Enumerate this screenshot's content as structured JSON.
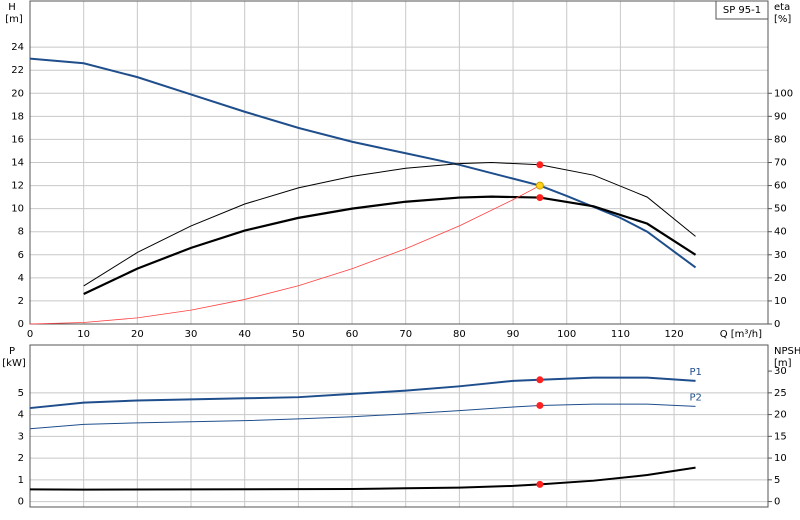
{
  "chart_data": [
    {
      "type": "line",
      "ylabel": "H",
      "yunit": "[m]",
      "y2label": "eta",
      "y2unit": "[%]",
      "xlabel": "Q [m³/h]",
      "title": "SP 95-1",
      "xlim": [
        0,
        137.5
      ],
      "xticks": [
        0,
        10,
        20,
        30,
        40,
        50,
        60,
        70,
        80,
        90,
        100,
        110,
        120
      ],
      "ylim": [
        0,
        28
      ],
      "yticks": [
        0,
        2,
        4,
        6,
        8,
        10,
        12,
        14,
        16,
        18,
        20,
        22,
        24
      ],
      "y2lim": [
        0,
        140
      ],
      "y2ticks": [
        0,
        10,
        20,
        30,
        40,
        50,
        60,
        70,
        80,
        90,
        100
      ],
      "grid": true,
      "x_tick_labels": true,
      "series": [
        {
          "color": "#1f4e8c",
          "width": 2,
          "axis": "y",
          "x": [
            0,
            10,
            20,
            30,
            40,
            50,
            60,
            70,
            80,
            90,
            95,
            100,
            110,
            115,
            124
          ],
          "values": [
            23,
            22.6,
            21.4,
            19.9,
            18.4,
            17,
            15.8,
            14.8,
            13.8,
            12.6,
            12,
            11.1,
            9.2,
            8,
            4.9
          ]
        },
        {
          "color": "#000000",
          "width": 1,
          "axis": "y2",
          "x": [
            10,
            20,
            30,
            40,
            50,
            60,
            70,
            80,
            86,
            95,
            105,
            115,
            124
          ],
          "values": [
            16.5,
            31,
            42.5,
            52,
            59,
            64,
            67.5,
            69.5,
            70,
            69,
            64.5,
            55,
            38
          ]
        },
        {
          "color": "#000000",
          "width": 2.2,
          "axis": "y2",
          "x": [
            10,
            20,
            30,
            40,
            50,
            60,
            70,
            80,
            86,
            95,
            105,
            115,
            124
          ],
          "values": [
            13,
            24,
            33,
            40.5,
            46,
            50,
            53,
            54.8,
            55.2,
            54.8,
            51,
            43.5,
            30
          ]
        },
        {
          "color": "#ff4040",
          "width": 0.8,
          "axis": "y",
          "x": [
            0,
            10,
            20,
            30,
            40,
            50,
            60,
            70,
            80,
            90,
            95
          ],
          "values": [
            0,
            0.13,
            0.53,
            1.2,
            2.13,
            3.32,
            4.79,
            6.52,
            8.51,
            10.77,
            12
          ]
        }
      ],
      "points": [
        {
          "x": 95,
          "value": 12,
          "color": "#ffd21f",
          "axis": "y"
        },
        {
          "x": 95,
          "value": 69,
          "color": "#ff2020",
          "axis": "y2"
        },
        {
          "x": 95,
          "value": 54.8,
          "color": "#ff2020",
          "axis": "y2"
        }
      ]
    },
    {
      "type": "line",
      "ylabel": "P",
      "yunit": "[kW]",
      "y2label": "NPSH",
      "y2unit": "[m]",
      "xlim": [
        0,
        137.5
      ],
      "xticks": [
        0,
        10,
        20,
        30,
        40,
        50,
        60,
        70,
        80,
        90,
        100,
        110,
        120
      ],
      "ylim": [
        -0.25,
        7.2
      ],
      "yticks": [
        0,
        1,
        2,
        3,
        4,
        5
      ],
      "y2lim": [
        -1.25,
        36
      ],
      "y2ticks": [
        0,
        5,
        10,
        15,
        20,
        25,
        30
      ],
      "grid": true,
      "x_tick_labels": false,
      "series": [
        {
          "name": "P1",
          "color": "#1f4e8c",
          "width": 2,
          "axis": "y",
          "x": [
            0,
            10,
            20,
            30,
            40,
            50,
            60,
            70,
            80,
            90,
            95,
            105,
            115,
            124
          ],
          "values": [
            4.3,
            4.55,
            4.65,
            4.7,
            4.75,
            4.8,
            4.95,
            5.1,
            5.3,
            5.55,
            5.6,
            5.7,
            5.7,
            5.55
          ]
        },
        {
          "name": "P2",
          "color": "#1f4e8c",
          "width": 1,
          "axis": "y",
          "x": [
            0,
            10,
            20,
            30,
            40,
            50,
            60,
            70,
            80,
            90,
            95,
            105,
            115,
            124
          ],
          "values": [
            3.35,
            3.55,
            3.62,
            3.67,
            3.72,
            3.8,
            3.9,
            4.03,
            4.18,
            4.35,
            4.42,
            4.48,
            4.48,
            4.38
          ]
        },
        {
          "color": "#000000",
          "width": 2,
          "axis": "y2",
          "x": [
            0,
            10,
            30,
            50,
            60,
            70,
            80,
            90,
            95,
            105,
            115,
            124
          ],
          "values": [
            2.8,
            2.75,
            2.8,
            2.85,
            2.9,
            3.05,
            3.2,
            3.6,
            3.95,
            4.8,
            6.1,
            7.8
          ]
        }
      ],
      "points": [
        {
          "x": 95,
          "value": 5.6,
          "color": "#ff2020",
          "axis": "y"
        },
        {
          "x": 95,
          "value": 4.42,
          "color": "#ff2020",
          "axis": "y"
        },
        {
          "x": 95,
          "value": 3.95,
          "color": "#ff2020",
          "axis": "y2"
        }
      ]
    }
  ]
}
